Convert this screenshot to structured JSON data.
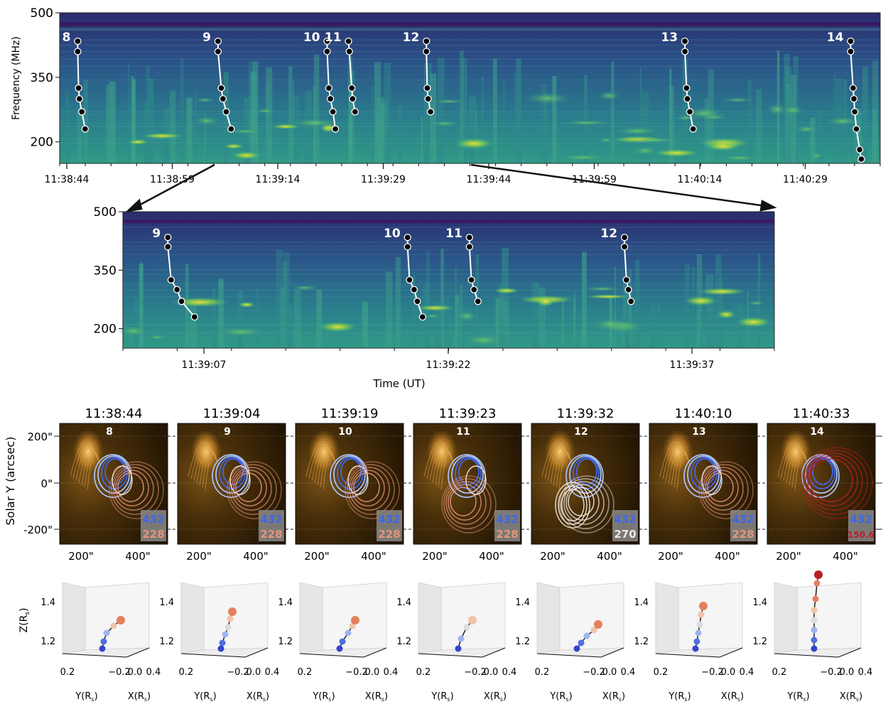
{
  "colors": {
    "spec_dark": "#2b2e72",
    "spec_mid": "#2c6f8e",
    "spec_green": "#3bb583",
    "spec_yellow": "#e7e33a",
    "euv_bg": "#3a2608",
    "euv_bright": "#f3b64a",
    "c432": "#3f67e6",
    "c270": "#efe8e4",
    "c228": "#e6957a",
    "c150": "#b82027"
  },
  "panel_a": {
    "ylabel": "Frequency (MHz)",
    "yticks": [
      {
        "label": "500",
        "value": 500
      },
      {
        "label": "350",
        "value": 350
      },
      {
        "label": "200",
        "value": 200
      }
    ],
    "xticks": [
      "11:38:44",
      "11:38:59",
      "11:39:14",
      "11:39:29",
      "11:39:44",
      "11:39:59",
      "11:40:14",
      "11:40:29"
    ],
    "bursts": [
      {
        "label": "8",
        "x": [
          0.022,
          0.022,
          0.023,
          0.024,
          0.027,
          0.031
        ],
        "y": [
          434,
          410,
          325,
          300,
          270,
          230
        ]
      },
      {
        "label": "9",
        "x": [
          0.193,
          0.193,
          0.197,
          0.199,
          0.203,
          0.209
        ],
        "y": [
          434,
          410,
          325,
          300,
          270,
          230
        ]
      },
      {
        "label": "10",
        "x": [
          0.326,
          0.326,
          0.328,
          0.33,
          0.333,
          0.336
        ],
        "y": [
          434,
          410,
          325,
          300,
          270,
          230
        ]
      },
      {
        "label": "11",
        "x": [
          0.352,
          0.353,
          0.356,
          0.357,
          0.36
        ],
        "y": [
          434,
          410,
          325,
          300,
          270
        ]
      },
      {
        "label": "12",
        "x": [
          0.447,
          0.447,
          0.448,
          0.449,
          0.452
        ],
        "y": [
          434,
          410,
          325,
          300,
          270
        ]
      },
      {
        "label": "13",
        "x": [
          0.762,
          0.762,
          0.764,
          0.765,
          0.768,
          0.772
        ],
        "y": [
          434,
          410,
          325,
          300,
          270,
          230
        ]
      },
      {
        "label": "14",
        "x": [
          0.964,
          0.964,
          0.967,
          0.968,
          0.969,
          0.971,
          0.975,
          0.977
        ],
        "y": [
          434,
          410,
          325,
          300,
          270,
          230,
          182,
          160
        ]
      }
    ]
  },
  "panel_b": {
    "yticks": [
      {
        "label": "500",
        "value": 500
      },
      {
        "label": "350",
        "value": 350
      },
      {
        "label": "200",
        "value": 200
      }
    ],
    "xticks": [
      "11:39:07",
      "11:39:22",
      "11:39:37"
    ],
    "xlabel": "Time (UT)",
    "bursts": [
      {
        "label": "9",
        "x": [
          0.069,
          0.069,
          0.074,
          0.083,
          0.09,
          0.11
        ],
        "y": [
          434,
          410,
          325,
          300,
          270,
          230
        ]
      },
      {
        "label": "10",
        "x": [
          0.437,
          0.437,
          0.44,
          0.447,
          0.452,
          0.46
        ],
        "y": [
          434,
          410,
          325,
          300,
          270,
          230
        ]
      },
      {
        "label": "11",
        "x": [
          0.532,
          0.532,
          0.535,
          0.539,
          0.545
        ],
        "y": [
          434,
          410,
          325,
          300,
          270
        ]
      },
      {
        "label": "12",
        "x": [
          0.77,
          0.77,
          0.773,
          0.776,
          0.78
        ],
        "y": [
          434,
          410,
          325,
          300,
          270
        ]
      }
    ]
  },
  "spectro_axis": {
    "fmin": 150,
    "fmax": 500
  },
  "panel_c": {
    "ylabel": "Solar Y (arcsec)",
    "yticks": [
      {
        "label": "200\"",
        "value": 200
      },
      {
        "label": "0\"",
        "value": 0
      },
      {
        "label": "-200\"",
        "value": -200
      }
    ],
    "xtick_labels": [
      "200\"",
      "400\""
    ],
    "frames": [
      {
        "time": "11:38:44",
        "burst": "8",
        "freq_hi": "432",
        "freq_lo": "228",
        "lo_color": "#e6957a"
      },
      {
        "time": "11:39:04",
        "burst": "9",
        "freq_hi": "432",
        "freq_lo": "228",
        "lo_color": "#e6957a"
      },
      {
        "time": "11:39:19",
        "burst": "10",
        "freq_hi": "432",
        "freq_lo": "228",
        "lo_color": "#e6957a"
      },
      {
        "time": "11:39:23",
        "burst": "11",
        "freq_hi": "432",
        "freq_lo": "228",
        "lo_color": "#e6957a"
      },
      {
        "time": "11:39:32",
        "burst": "12",
        "freq_hi": "432",
        "freq_lo": "270",
        "lo_color": "#efe8e4"
      },
      {
        "time": "11:40:10",
        "burst": "13",
        "freq_hi": "432",
        "freq_lo": "228",
        "lo_color": "#e6957a"
      },
      {
        "time": "11:40:33",
        "burst": "14",
        "freq_hi": "432",
        "freq_lo": "150.6",
        "lo_color": "#b82027"
      }
    ]
  },
  "panel_d": {
    "zlabel": "Z(R",
    "zlabel_sub": "s",
    "zlabel_end": ")",
    "ylabel": "Y(R",
    "xlabel": "X(R",
    "label_sub": "s",
    "label_end": ")",
    "zticks": [
      "1.4",
      "1.2"
    ],
    "ytick_labels": [
      "0.2",
      "−0.2"
    ],
    "xtick_labels": [
      "0.0",
      "0.4"
    ]
  }
}
